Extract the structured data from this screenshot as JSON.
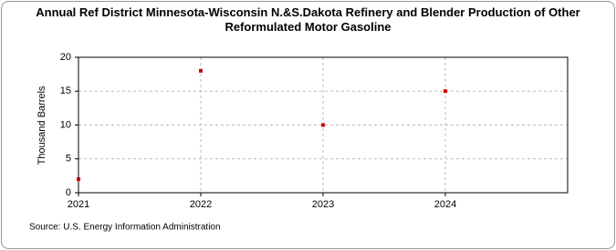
{
  "chart_data": {
    "type": "scatter",
    "title": "Annual Ref District Minnesota-Wisconsin N.&S.Dakota Refinery and Blender Production of Other Reformulated Motor Gasoline",
    "y_label": "Thousand Barrels",
    "source": "Source: U.S. Energy Information Administration",
    "x": [
      2021,
      2022,
      2023,
      2024
    ],
    "values": [
      2,
      18,
      10,
      15
    ],
    "color": "#cc0000",
    "xlim": [
      2021,
      2025
    ],
    "xticks": [
      2021,
      2022,
      2023,
      2024
    ],
    "ylim": [
      0,
      20
    ],
    "yticks": [
      0,
      5,
      10,
      15,
      20
    ],
    "grid": true
  }
}
